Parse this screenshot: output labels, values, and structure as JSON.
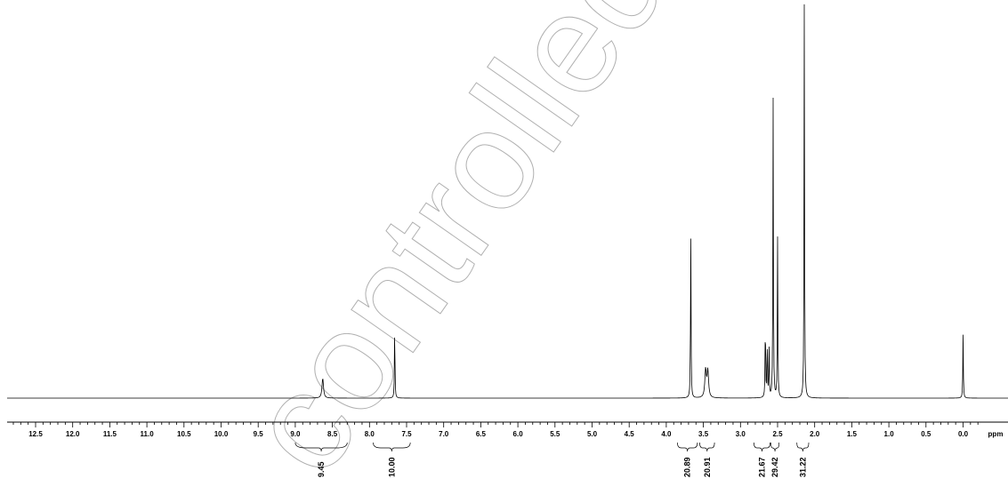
{
  "chart_data": {
    "type": "line",
    "title": "",
    "xlabel": "ppm",
    "ylabel": "",
    "x_axis_reversed": true,
    "xlim": [
      13.0,
      -0.3
    ],
    "tick_labels": [
      "12.5",
      "12.0",
      "11.5",
      "11.0",
      "10.5",
      "10.0",
      "9.5",
      "9.0",
      "8.5",
      "8.0",
      "7.5",
      "7.0",
      "6.5",
      "6.0",
      "5.5",
      "5.0",
      "4.5",
      "4.0",
      "3.5",
      "3.0",
      "2.5",
      "2.0",
      "1.5",
      "1.0",
      "0.5",
      "0.0"
    ],
    "tick_values": [
      12.5,
      12.0,
      11.5,
      11.0,
      10.5,
      10.0,
      9.5,
      9.0,
      8.5,
      8.0,
      7.5,
      7.0,
      6.5,
      6.0,
      5.5,
      5.0,
      4.5,
      4.0,
      3.5,
      3.0,
      2.5,
      2.0,
      1.5,
      1.0,
      0.5,
      0.0
    ],
    "peaks": [
      {
        "ppm": 8.63,
        "height": 0.066,
        "width": 0.012
      },
      {
        "ppm": 7.66,
        "height": 0.244,
        "width": 0.004
      },
      {
        "ppm": 3.67,
        "height": 0.556,
        "width": 0.004
      },
      {
        "ppm": 3.47,
        "height": 0.092,
        "width": 0.012
      },
      {
        "ppm": 3.44,
        "height": 0.088,
        "width": 0.012
      },
      {
        "ppm": 2.665,
        "height": 0.27,
        "width": 0.004
      },
      {
        "ppm": 2.64,
        "height": 0.19,
        "width": 0.004
      },
      {
        "ppm": 2.615,
        "height": 0.17,
        "width": 0.004
      },
      {
        "ppm": 2.56,
        "height": 0.99,
        "width": 0.004
      },
      {
        "ppm": 2.5,
        "height": 0.53,
        "width": 0.004
      },
      {
        "ppm": 2.14,
        "height": 1.31,
        "width": 0.004
      },
      {
        "ppm": 0.0,
        "height": 0.21,
        "width": 0.004
      }
    ],
    "integrals": [
      {
        "label": "9.45",
        "from": 9.0,
        "to": 8.3
      },
      {
        "label": "10.00",
        "from": 7.95,
        "to": 7.45
      },
      {
        "label": "20.89",
        "from": 3.85,
        "to": 3.58
      },
      {
        "label": "20.91",
        "from": 3.55,
        "to": 3.35
      },
      {
        "label": "21.67",
        "from": 2.82,
        "to": 2.6
      },
      {
        "label": "29.42",
        "from": 2.59,
        "to": 2.48
      },
      {
        "label": "31.22",
        "from": 2.24,
        "to": 2.08
      }
    ],
    "grid": false
  },
  "watermark": {
    "text": "controlled",
    "color": "#b0b0b0"
  }
}
